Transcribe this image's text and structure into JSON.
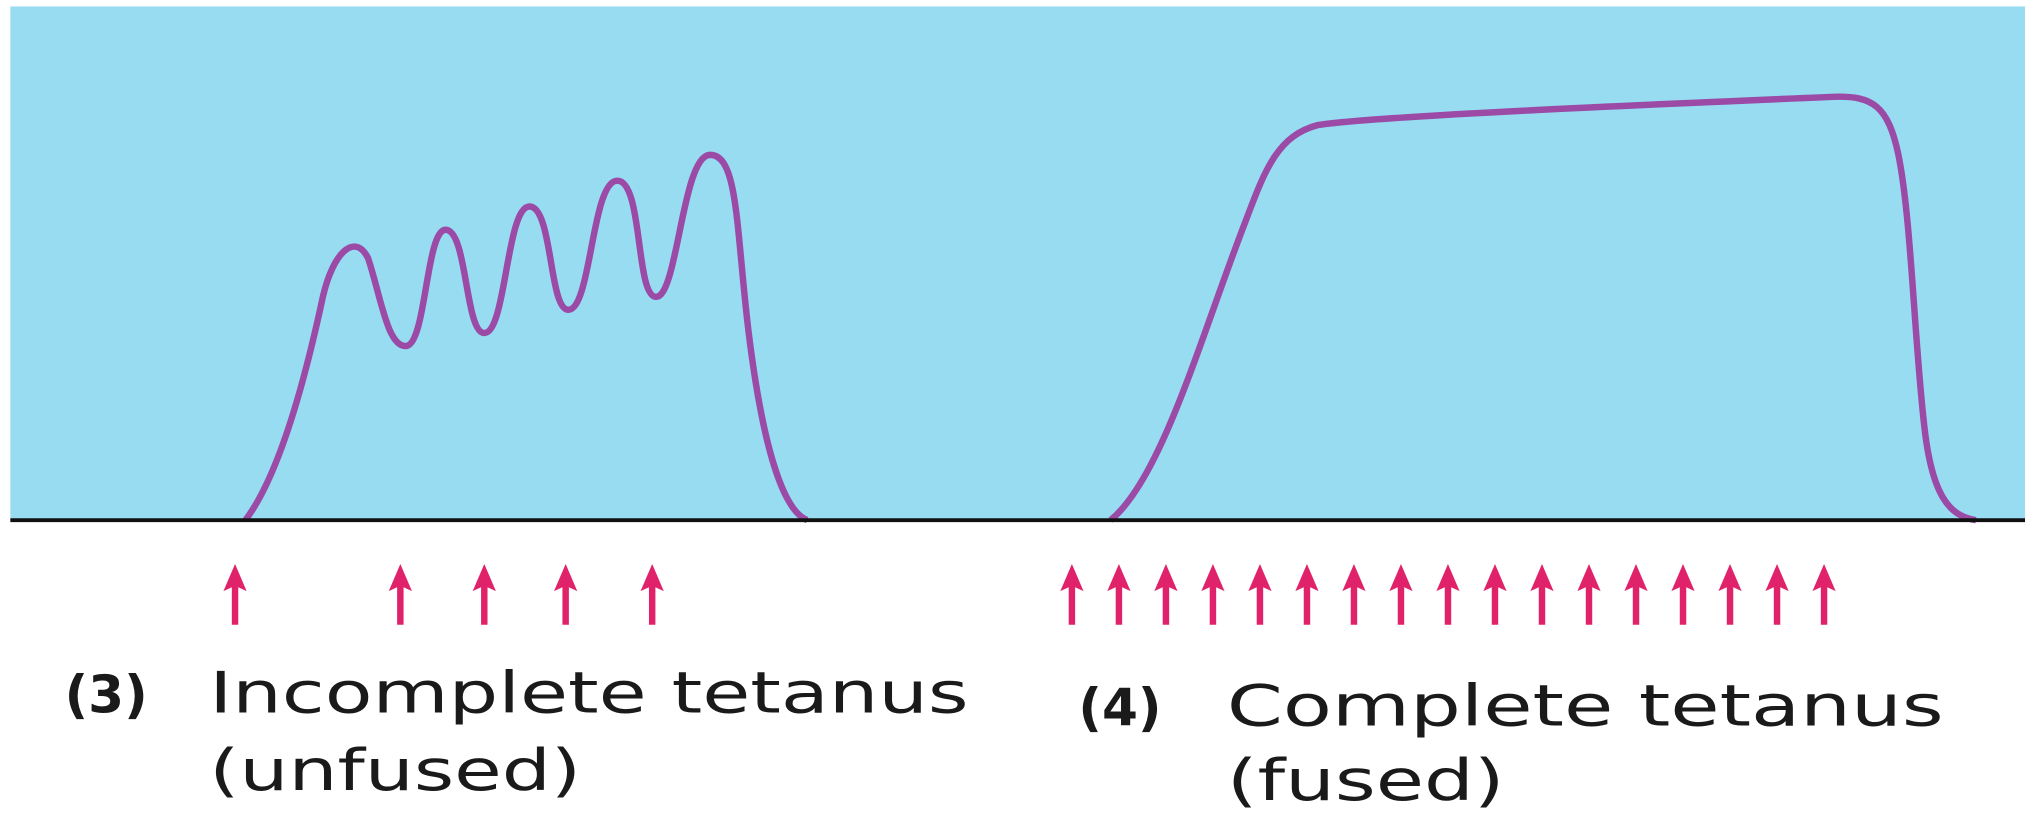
{
  "panels": [
    {
      "number": "(3)",
      "title": "Incomplete tetanus",
      "subtitle": "(unfused)"
    },
    {
      "number": "(4)",
      "title": "Complete tetanus",
      "subtitle": "(fused)"
    }
  ]
}
